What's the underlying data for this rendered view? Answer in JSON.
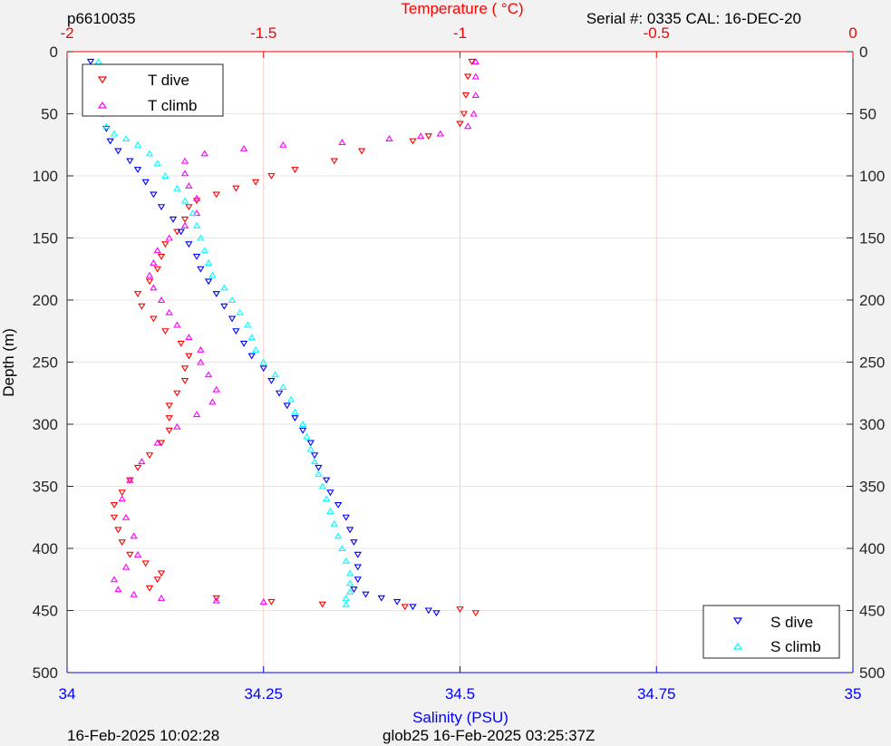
{
  "header": {
    "left_label": "p6610035",
    "right_label": "Serial #: 0335  CAL: 16-DEC-20"
  },
  "footer": {
    "left_label": "16-Feb-2025 10:02:28",
    "center_label": "glob25 16-Feb-2025 03:25:37Z"
  },
  "colors": {
    "temperature_axis": "#ff0000",
    "salinity_axis": "#0000ff",
    "t_dive": "#ff0000",
    "t_climb": "#ff00ff",
    "s_dive": "#0000ff",
    "s_climb": "#00ffff",
    "figure_background": "#f2f2f2",
    "axes_background": "#ffffff",
    "grid": "#e6e6e6"
  },
  "chart_data": {
    "type": "scatter",
    "top_axis": {
      "label": "Temperature (   °C)",
      "range": [
        -2,
        0
      ],
      "ticks": [
        -2,
        -1.5,
        -1,
        -0.5,
        0
      ],
      "tick_labels": [
        "-2",
        "-1.5",
        "-1",
        "-0.5",
        "0"
      ]
    },
    "bottom_axis": {
      "label": "Salinity (PSU)",
      "range": [
        34,
        35
      ],
      "ticks": [
        34,
        34.25,
        34.5,
        34.75,
        35
      ],
      "tick_labels": [
        "34",
        "34.25",
        "34.5",
        "34.75",
        "35"
      ]
    },
    "y_axis": {
      "label": "Depth (m)",
      "range": [
        0,
        500
      ],
      "reversed": true,
      "ticks": [
        0,
        50,
        100,
        150,
        200,
        250,
        300,
        350,
        400,
        450,
        500
      ],
      "tick_labels": [
        "0",
        "50",
        "100",
        "150",
        "200",
        "250",
        "300",
        "350",
        "400",
        "450",
        "500"
      ]
    },
    "grid": true,
    "legends": [
      {
        "placement": "top-left",
        "entries": [
          "T dive",
          "T climb"
        ]
      },
      {
        "placement": "bottom-right",
        "entries": [
          "S dive",
          "S climb"
        ]
      }
    ],
    "series": [
      {
        "name": "T dive",
        "axis": "temperature",
        "marker": "triangle-down",
        "points": [
          [
            -0.97,
            8
          ],
          [
            -0.98,
            20
          ],
          [
            -0.985,
            35
          ],
          [
            -0.99,
            50
          ],
          [
            -1.0,
            58
          ],
          [
            -1.08,
            68
          ],
          [
            -1.12,
            72
          ],
          [
            -1.25,
            80
          ],
          [
            -1.32,
            88
          ],
          [
            -1.42,
            95
          ],
          [
            -1.48,
            100
          ],
          [
            -1.52,
            105
          ],
          [
            -1.57,
            110
          ],
          [
            -1.62,
            115
          ],
          [
            -1.67,
            120
          ],
          [
            -1.69,
            125
          ],
          [
            -1.7,
            135
          ],
          [
            -1.72,
            145
          ],
          [
            -1.75,
            155
          ],
          [
            -1.76,
            165
          ],
          [
            -1.77,
            175
          ],
          [
            -1.79,
            185
          ],
          [
            -1.82,
            195
          ],
          [
            -1.81,
            205
          ],
          [
            -1.78,
            215
          ],
          [
            -1.75,
            225
          ],
          [
            -1.71,
            235
          ],
          [
            -1.69,
            245
          ],
          [
            -1.7,
            255
          ],
          [
            -1.7,
            265
          ],
          [
            -1.72,
            275
          ],
          [
            -1.74,
            285
          ],
          [
            -1.74,
            295
          ],
          [
            -1.74,
            305
          ],
          [
            -1.76,
            315
          ],
          [
            -1.79,
            325
          ],
          [
            -1.82,
            335
          ],
          [
            -1.84,
            345
          ],
          [
            -1.86,
            355
          ],
          [
            -1.88,
            365
          ],
          [
            -1.88,
            375
          ],
          [
            -1.87,
            385
          ],
          [
            -1.86,
            395
          ],
          [
            -1.84,
            405
          ],
          [
            -1.8,
            412
          ],
          [
            -1.76,
            420
          ],
          [
            -1.77,
            425
          ],
          [
            -1.79,
            432
          ],
          [
            -1.62,
            440
          ],
          [
            -1.48,
            443
          ],
          [
            -1.35,
            445
          ],
          [
            -1.14,
            447
          ],
          [
            -1.0,
            449
          ],
          [
            -0.96,
            452
          ]
        ]
      },
      {
        "name": "T climb",
        "axis": "temperature",
        "marker": "triangle-up",
        "points": [
          [
            -0.96,
            8
          ],
          [
            -0.96,
            20
          ],
          [
            -0.96,
            35
          ],
          [
            -0.965,
            50
          ],
          [
            -0.98,
            60
          ],
          [
            -1.05,
            66
          ],
          [
            -1.1,
            68
          ],
          [
            -1.18,
            70
          ],
          [
            -1.3,
            73
          ],
          [
            -1.45,
            75
          ],
          [
            -1.55,
            78
          ],
          [
            -1.65,
            82
          ],
          [
            -1.7,
            88
          ],
          [
            -1.7,
            98
          ],
          [
            -1.69,
            108
          ],
          [
            -1.67,
            118
          ],
          [
            -1.67,
            130
          ],
          [
            -1.7,
            140
          ],
          [
            -1.74,
            150
          ],
          [
            -1.77,
            160
          ],
          [
            -1.78,
            170
          ],
          [
            -1.79,
            180
          ],
          [
            -1.78,
            190
          ],
          [
            -1.76,
            200
          ],
          [
            -1.74,
            210
          ],
          [
            -1.72,
            220
          ],
          [
            -1.69,
            230
          ],
          [
            -1.66,
            240
          ],
          [
            -1.66,
            250
          ],
          [
            -1.64,
            260
          ],
          [
            -1.62,
            272
          ],
          [
            -1.63,
            282
          ],
          [
            -1.67,
            292
          ],
          [
            -1.72,
            302
          ],
          [
            -1.77,
            315
          ],
          [
            -1.81,
            330
          ],
          [
            -1.84,
            345
          ],
          [
            -1.86,
            360
          ],
          [
            -1.85,
            375
          ],
          [
            -1.83,
            390
          ],
          [
            -1.82,
            405
          ],
          [
            -1.85,
            415
          ],
          [
            -1.88,
            425
          ],
          [
            -1.87,
            433
          ],
          [
            -1.83,
            437
          ],
          [
            -1.76,
            440
          ],
          [
            -1.62,
            442
          ],
          [
            -1.5,
            443
          ]
        ]
      },
      {
        "name": "S dive",
        "axis": "salinity",
        "marker": "triangle-down",
        "points": [
          [
            34.03,
            8
          ],
          [
            34.035,
            20
          ],
          [
            34.04,
            35
          ],
          [
            34.045,
            50
          ],
          [
            34.05,
            62
          ],
          [
            34.055,
            72
          ],
          [
            34.065,
            80
          ],
          [
            34.08,
            88
          ],
          [
            34.09,
            95
          ],
          [
            34.1,
            105
          ],
          [
            34.11,
            115
          ],
          [
            34.12,
            125
          ],
          [
            34.135,
            135
          ],
          [
            34.145,
            145
          ],
          [
            34.155,
            155
          ],
          [
            34.165,
            165
          ],
          [
            34.17,
            175
          ],
          [
            34.18,
            185
          ],
          [
            34.19,
            195
          ],
          [
            34.2,
            205
          ],
          [
            34.21,
            215
          ],
          [
            34.215,
            225
          ],
          [
            34.225,
            235
          ],
          [
            34.235,
            245
          ],
          [
            34.25,
            255
          ],
          [
            34.26,
            265
          ],
          [
            34.27,
            275
          ],
          [
            34.28,
            285
          ],
          [
            34.29,
            295
          ],
          [
            34.3,
            305
          ],
          [
            34.31,
            315
          ],
          [
            34.315,
            325
          ],
          [
            34.32,
            335
          ],
          [
            34.33,
            345
          ],
          [
            34.335,
            355
          ],
          [
            34.345,
            365
          ],
          [
            34.355,
            375
          ],
          [
            34.36,
            385
          ],
          [
            34.365,
            395
          ],
          [
            34.37,
            405
          ],
          [
            34.37,
            415
          ],
          [
            34.37,
            425
          ],
          [
            34.365,
            433
          ],
          [
            34.38,
            437
          ],
          [
            34.4,
            440
          ],
          [
            34.42,
            443
          ],
          [
            34.44,
            447
          ],
          [
            34.46,
            450
          ],
          [
            34.47,
            452
          ]
        ]
      },
      {
        "name": "S climb",
        "axis": "salinity",
        "marker": "triangle-up",
        "points": [
          [
            34.04,
            8
          ],
          [
            34.04,
            20
          ],
          [
            34.045,
            35
          ],
          [
            34.045,
            50
          ],
          [
            34.05,
            60
          ],
          [
            34.06,
            66
          ],
          [
            34.075,
            70
          ],
          [
            34.09,
            75
          ],
          [
            34.105,
            82
          ],
          [
            34.115,
            90
          ],
          [
            34.125,
            100
          ],
          [
            34.14,
            110
          ],
          [
            34.15,
            120
          ],
          [
            34.16,
            130
          ],
          [
            34.165,
            140
          ],
          [
            34.17,
            150
          ],
          [
            34.175,
            160
          ],
          [
            34.18,
            170
          ],
          [
            34.185,
            180
          ],
          [
            34.2,
            190
          ],
          [
            34.21,
            200
          ],
          [
            34.22,
            210
          ],
          [
            34.23,
            220
          ],
          [
            34.235,
            230
          ],
          [
            34.24,
            240
          ],
          [
            34.25,
            250
          ],
          [
            34.265,
            260
          ],
          [
            34.275,
            270
          ],
          [
            34.285,
            280
          ],
          [
            34.29,
            290
          ],
          [
            34.3,
            300
          ],
          [
            34.305,
            310
          ],
          [
            34.31,
            320
          ],
          [
            34.315,
            330
          ],
          [
            34.32,
            340
          ],
          [
            34.325,
            350
          ],
          [
            34.33,
            360
          ],
          [
            34.335,
            370
          ],
          [
            34.34,
            380
          ],
          [
            34.345,
            390
          ],
          [
            34.35,
            400
          ],
          [
            34.355,
            410
          ],
          [
            34.36,
            420
          ],
          [
            34.36,
            428
          ],
          [
            34.36,
            435
          ],
          [
            34.355,
            440
          ],
          [
            34.355,
            445
          ]
        ]
      }
    ]
  }
}
